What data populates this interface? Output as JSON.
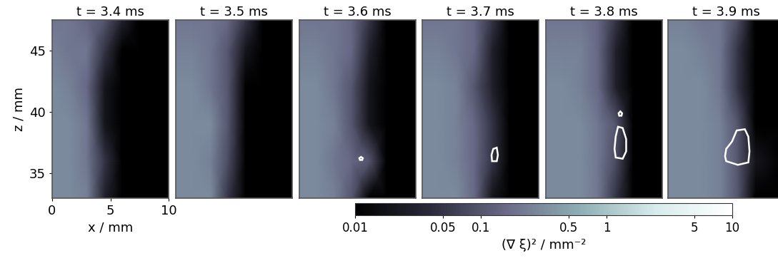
{
  "chart_data": {
    "type": "heatmap",
    "xlabel": "x / mm",
    "ylabel": "z / mm",
    "xlim": [
      0,
      10
    ],
    "ylim": [
      33,
      47.5
    ],
    "xticks": [
      0,
      5,
      10
    ],
    "yticks": [
      35,
      40,
      45
    ],
    "x_nodes": [
      0,
      1.5,
      3,
      4.5,
      6,
      7.5,
      10
    ],
    "z_nodes": [
      33,
      36,
      39,
      42,
      45,
      47.5
    ],
    "colorbar": {
      "label": "(∇ ξ)² / mm⁻²",
      "range": [
        0.01,
        10
      ],
      "ticks": [
        0.01,
        0.05,
        0.1,
        0.5,
        1,
        5,
        10
      ],
      "log": true
    },
    "panels": [
      {
        "title": "t = 3.4 ms",
        "values": [
          [
            0.3,
            0.3,
            0.25,
            0.03,
            0.01,
            0.01,
            0.01
          ],
          [
            0.3,
            0.3,
            0.2,
            0.05,
            0.01,
            0.01,
            0.01
          ],
          [
            0.3,
            0.3,
            0.2,
            0.02,
            0.01,
            0.01,
            0.01
          ],
          [
            0.3,
            0.25,
            0.15,
            0.02,
            0.01,
            0.01,
            0.01
          ],
          [
            0.25,
            0.2,
            0.2,
            0.05,
            0.01,
            0.01,
            0.01
          ],
          [
            0.2,
            0.2,
            0.15,
            0.1,
            0.03,
            0.01,
            0.01
          ]
        ],
        "contours": []
      },
      {
        "title": "t = 3.5 ms",
        "values": [
          [
            0.3,
            0.3,
            0.3,
            0.05,
            0.01,
            0.01,
            0.01
          ],
          [
            0.3,
            0.3,
            0.25,
            0.08,
            0.01,
            0.01,
            0.01
          ],
          [
            0.3,
            0.3,
            0.3,
            0.1,
            0.01,
            0.01,
            0.01
          ],
          [
            0.3,
            0.3,
            0.2,
            0.1,
            0.01,
            0.01,
            0.01
          ],
          [
            0.25,
            0.25,
            0.2,
            0.1,
            0.02,
            0.01,
            0.01
          ],
          [
            0.2,
            0.2,
            0.2,
            0.15,
            0.05,
            0.01,
            0.01
          ]
        ],
        "contours": []
      },
      {
        "title": "t = 3.6 ms",
        "values": [
          [
            0.3,
            0.3,
            0.25,
            0.1,
            0.01,
            0.01,
            0.01
          ],
          [
            0.3,
            0.3,
            0.2,
            0.15,
            0.1,
            0.01,
            0.01
          ],
          [
            0.3,
            0.3,
            0.25,
            0.1,
            0.02,
            0.01,
            0.01
          ],
          [
            0.3,
            0.3,
            0.2,
            0.1,
            0.02,
            0.01,
            0.01
          ],
          [
            0.25,
            0.25,
            0.2,
            0.15,
            0.03,
            0.01,
            0.01
          ],
          [
            0.2,
            0.2,
            0.2,
            0.15,
            0.05,
            0.01,
            0.01
          ]
        ],
        "contours": [
          [
            [
              5.2,
              36.1
            ],
            [
              5.4,
              36.1
            ],
            [
              5.45,
              36.25
            ],
            [
              5.3,
              36.35
            ],
            [
              5.15,
              36.25
            ]
          ]
        ]
      },
      {
        "title": "t = 3.7 ms",
        "values": [
          [
            0.3,
            0.3,
            0.3,
            0.15,
            0.02,
            0.01,
            0.01
          ],
          [
            0.3,
            0.3,
            0.25,
            0.15,
            0.05,
            0.01,
            0.01
          ],
          [
            0.3,
            0.3,
            0.25,
            0.15,
            0.05,
            0.01,
            0.01
          ],
          [
            0.3,
            0.3,
            0.25,
            0.1,
            0.03,
            0.01,
            0.01
          ],
          [
            0.25,
            0.25,
            0.2,
            0.15,
            0.03,
            0.01,
            0.01
          ],
          [
            0.2,
            0.2,
            0.2,
            0.15,
            0.05,
            0.01,
            0.01
          ]
        ],
        "contours": [
          [
            [
              6.0,
              36.0
            ],
            [
              6.4,
              36.0
            ],
            [
              6.5,
              36.5
            ],
            [
              6.4,
              37.1
            ],
            [
              6.1,
              37.0
            ],
            [
              5.95,
              36.5
            ]
          ]
        ]
      },
      {
        "title": "t = 3.8 ms",
        "values": [
          [
            0.3,
            0.3,
            0.3,
            0.2,
            0.05,
            0.01,
            0.01
          ],
          [
            0.3,
            0.3,
            0.3,
            0.2,
            0.08,
            0.01,
            0.01
          ],
          [
            0.3,
            0.3,
            0.3,
            0.2,
            0.1,
            0.01,
            0.01
          ],
          [
            0.3,
            0.3,
            0.25,
            0.15,
            0.03,
            0.01,
            0.01
          ],
          [
            0.25,
            0.25,
            0.25,
            0.15,
            0.03,
            0.01,
            0.01
          ],
          [
            0.2,
            0.2,
            0.2,
            0.15,
            0.05,
            0.01,
            0.01
          ]
        ],
        "contours": [
          [
            [
              6.0,
              36.3
            ],
            [
              6.6,
              36.2
            ],
            [
              6.9,
              36.8
            ],
            [
              6.9,
              37.8
            ],
            [
              6.6,
              38.7
            ],
            [
              6.2,
              38.8
            ],
            [
              6.0,
              38.0
            ],
            [
              5.9,
              37.0
            ]
          ],
          [
            [
              6.3,
              39.7
            ],
            [
              6.5,
              39.7
            ],
            [
              6.55,
              39.9
            ],
            [
              6.4,
              40.05
            ],
            [
              6.25,
              39.9
            ]
          ]
        ]
      },
      {
        "title": "t = 3.9 ms",
        "values": [
          [
            0.3,
            0.3,
            0.3,
            0.25,
            0.1,
            0.01,
            0.01
          ],
          [
            0.3,
            0.3,
            0.3,
            0.25,
            0.1,
            0.02,
            0.01
          ],
          [
            0.3,
            0.3,
            0.3,
            0.25,
            0.1,
            0.01,
            0.01
          ],
          [
            0.3,
            0.3,
            0.3,
            0.2,
            0.05,
            0.01,
            0.01
          ],
          [
            0.3,
            0.3,
            0.25,
            0.2,
            0.05,
            0.01,
            0.01
          ],
          [
            0.25,
            0.25,
            0.2,
            0.2,
            0.08,
            0.01,
            0.01
          ]
        ],
        "contours": [
          [
            [
              5.0,
              36.0
            ],
            [
              6.0,
              35.7
            ],
            [
              6.9,
              35.9
            ],
            [
              7.0,
              36.8
            ],
            [
              6.9,
              38.0
            ],
            [
              6.6,
              38.6
            ],
            [
              5.9,
              38.5
            ],
            [
              5.5,
              37.6
            ],
            [
              5.0,
              37.0
            ],
            [
              4.9,
              36.4
            ]
          ]
        ]
      }
    ]
  }
}
